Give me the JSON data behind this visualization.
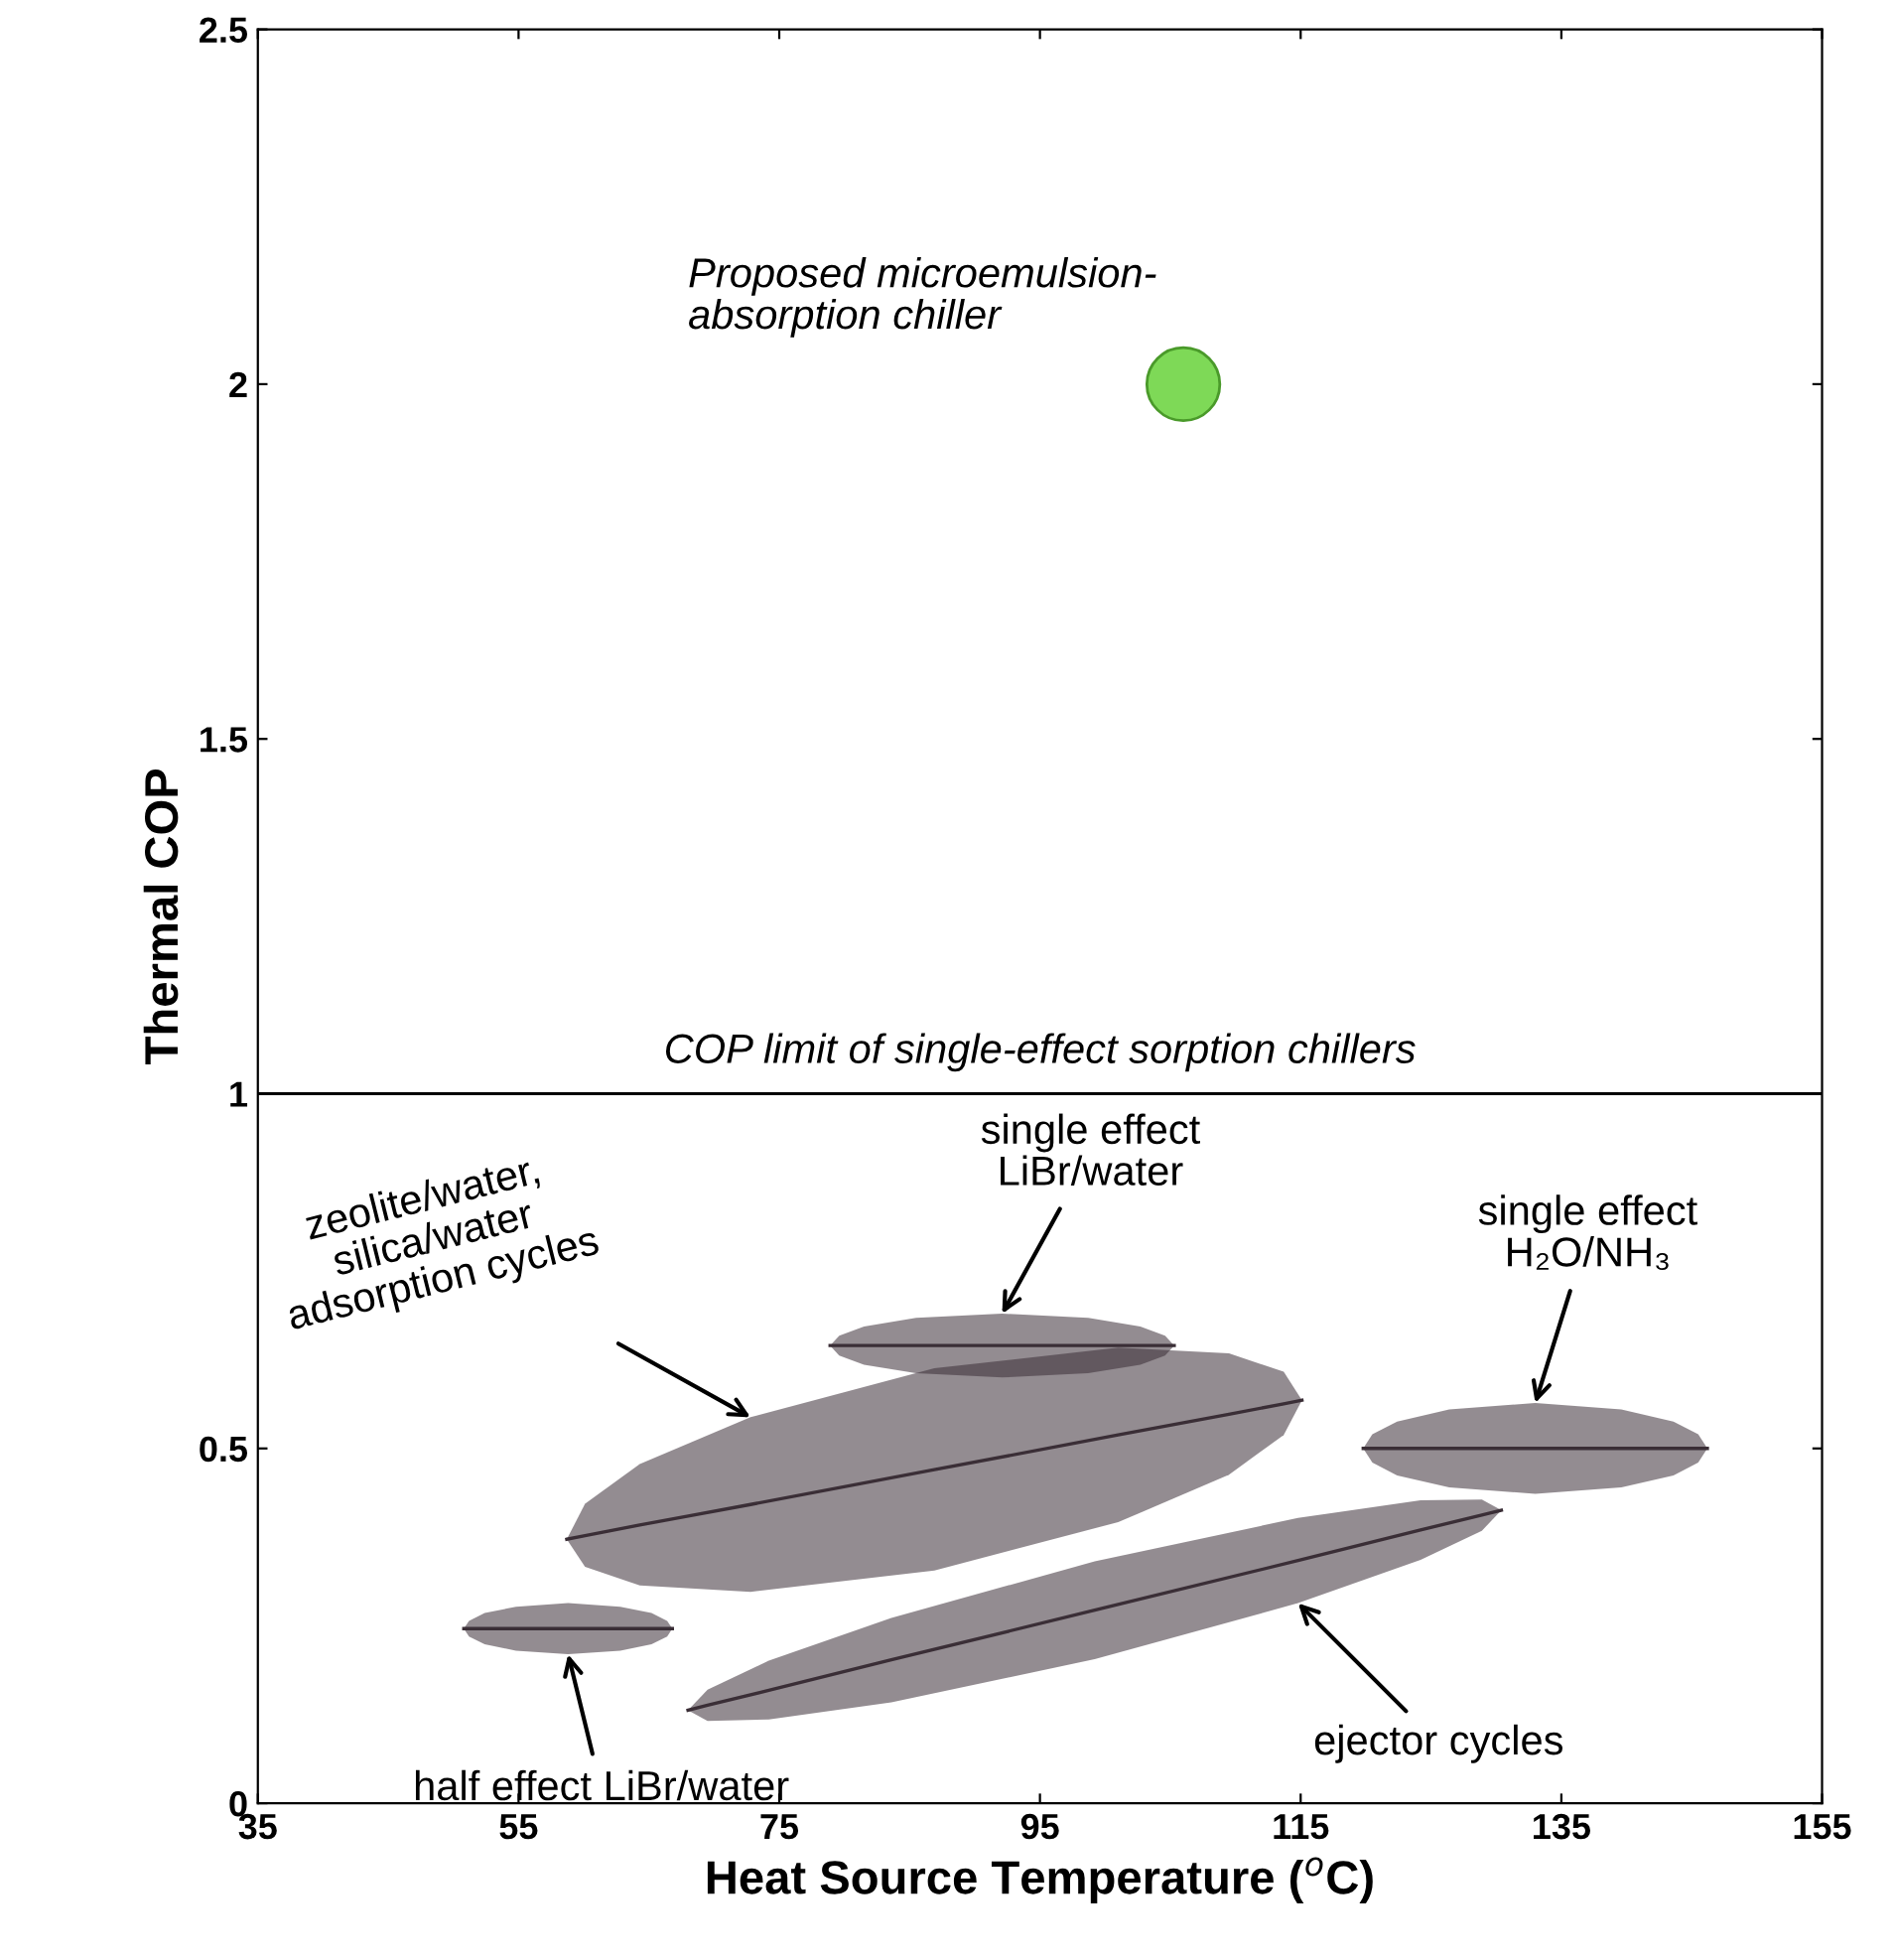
{
  "chart_data": {
    "type": "scatter",
    "xlabel": "Heat Source Temperature ($^{o}$C)",
    "ylabel": "Thermal COP",
    "xlim": [
      35,
      155
    ],
    "xticks": [
      35,
      55,
      75,
      95,
      115,
      135,
      155
    ],
    "ylim": [
      0,
      2.5
    ],
    "yticks": [
      0,
      0.5,
      1,
      1.5,
      2,
      2.5
    ],
    "grid": false,
    "legend": false,
    "series": [
      {
        "color": "#7ed957",
        "marker": "circle",
        "x": [
          106
        ],
        "values": [
          2.0
        ]
      },
      {
        "type": "line",
        "color": "#3a2e36",
        "x": [
          78.9,
          79.6,
          81.5,
          85.5,
          92.1,
          98.7,
          102.7,
          104.6,
          105.3
        ],
        "values": [
          0.645,
          0.645,
          0.645,
          0.645,
          0.645,
          0.645,
          0.645,
          0.645,
          0.645
        ],
        "lower": [
          0.645,
          0.631,
          0.618,
          0.606,
          0.6,
          0.606,
          0.618,
          0.631,
          0.645
        ],
        "upper": [
          0.645,
          0.659,
          0.672,
          0.684,
          0.69,
          0.684,
          0.672,
          0.659,
          0.645
        ]
      },
      {
        "type": "line",
        "color": "#3a2e36",
        "x": [
          58.7,
          60.1,
          64.3,
          72.8,
          86.9,
          101.0,
          109.5,
          113.7,
          115.1
        ],
        "values": [
          0.372,
          0.377,
          0.392,
          0.421,
          0.47,
          0.519,
          0.548,
          0.563,
          0.568
        ],
        "lower": [
          0.372,
          0.333,
          0.307,
          0.298,
          0.328,
          0.396,
          0.463,
          0.519,
          0.568
        ],
        "upper": [
          0.372,
          0.422,
          0.478,
          0.544,
          0.613,
          0.642,
          0.634,
          0.608,
          0.568
        ]
      },
      {
        "type": "line",
        "color": "#3a2e36",
        "x": [
          68.0,
          69.5,
          74.2,
          83.6,
          99.2,
          114.8,
          124.2,
          128.9,
          130.4
        ],
        "values": [
          0.131,
          0.138,
          0.159,
          0.202,
          0.272,
          0.342,
          0.385,
          0.406,
          0.413
        ],
        "lower": [
          0.131,
          0.116,
          0.118,
          0.142,
          0.203,
          0.282,
          0.343,
          0.384,
          0.413
        ],
        "upper": [
          0.131,
          0.16,
          0.201,
          0.261,
          0.341,
          0.402,
          0.427,
          0.428,
          0.413
        ]
      },
      {
        "type": "line",
        "color": "#3a2e36",
        "x": [
          119.8,
          120.5,
          122.4,
          126.4,
          133.0,
          139.6,
          143.6,
          145.5,
          146.2
        ],
        "values": [
          0.5,
          0.5,
          0.5,
          0.5,
          0.5,
          0.5,
          0.5,
          0.5,
          0.5
        ],
        "lower": [
          0.5,
          0.48,
          0.462,
          0.445,
          0.436,
          0.445,
          0.462,
          0.48,
          0.5
        ],
        "upper": [
          0.5,
          0.52,
          0.538,
          0.555,
          0.564,
          0.555,
          0.538,
          0.52,
          0.5
        ]
      },
      {
        "type": "line",
        "color": "#3a2e36",
        "x": [
          50.8,
          51.2,
          52.4,
          54.8,
          58.8,
          62.8,
          65.2,
          66.4,
          66.8
        ],
        "values": [
          0.246,
          0.246,
          0.246,
          0.246,
          0.246,
          0.246,
          0.246,
          0.246,
          0.246
        ],
        "lower": [
          0.246,
          0.235,
          0.224,
          0.215,
          0.21,
          0.215,
          0.224,
          0.235,
          0.246
        ],
        "upper": [
          0.246,
          0.257,
          0.268,
          0.277,
          0.282,
          0.277,
          0.268,
          0.257,
          0.246
        ]
      }
    ],
    "ref_lines": [
      {
        "axis": "y",
        "value": 1.0,
        "label": "COP limit of single-effect sorption chillers",
        "color": "#000000"
      }
    ],
    "annotations": [
      "Proposed microemulsion-\nabsorption chiller",
      {
        "text": "single effect\nLiBr/water",
        "x": 92.1,
        "y": 0.69
      },
      {
        "text": "zeolite/water,\nsilica/water\nadsorption cycles",
        "x": 72.8,
        "y": 0.544
      },
      {
        "text": "single effect\nH₂O/NH₃",
        "x": 133.0,
        "y": 0.564
      },
      {
        "text": "ejector cycles",
        "x": 114.8,
        "y": 0.282
      },
      {
        "text": "half effect LiBr/water",
        "x": 58.8,
        "y": 0.21
      }
    ]
  }
}
